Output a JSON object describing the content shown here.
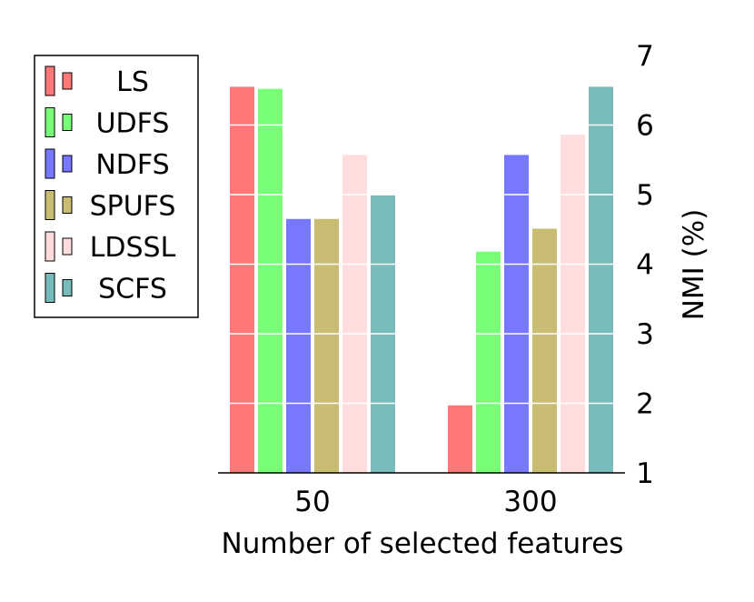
{
  "chart_data": {
    "type": "bar",
    "xlabel": "Number of selected features",
    "ylabel": "NMI (%)",
    "ylim": [
      1,
      7
    ],
    "yticks": [
      "1",
      "2",
      "3",
      "4",
      "5",
      "6",
      "7"
    ],
    "y_axis_side": "right",
    "grid": "horizontal, white, over bars",
    "legend_position": "left",
    "categories": [
      "50",
      "300"
    ],
    "series": [
      {
        "name": "LS",
        "color": "#ff7777",
        "values": [
          6.55,
          1.97
        ]
      },
      {
        "name": "UDFS",
        "color": "#77ff77",
        "values": [
          6.52,
          4.18
        ]
      },
      {
        "name": "NDFS",
        "color": "#7777ff",
        "values": [
          4.65,
          5.57
        ]
      },
      {
        "name": "SPUFS",
        "color": "#c8bd72",
        "values": [
          4.65,
          4.51
        ]
      },
      {
        "name": "LDSSL",
        "color": "#ffdddd",
        "values": [
          5.57,
          5.86
        ]
      },
      {
        "name": "SCFS",
        "color": "#77bbbb",
        "values": [
          4.99,
          6.55
        ]
      }
    ]
  }
}
